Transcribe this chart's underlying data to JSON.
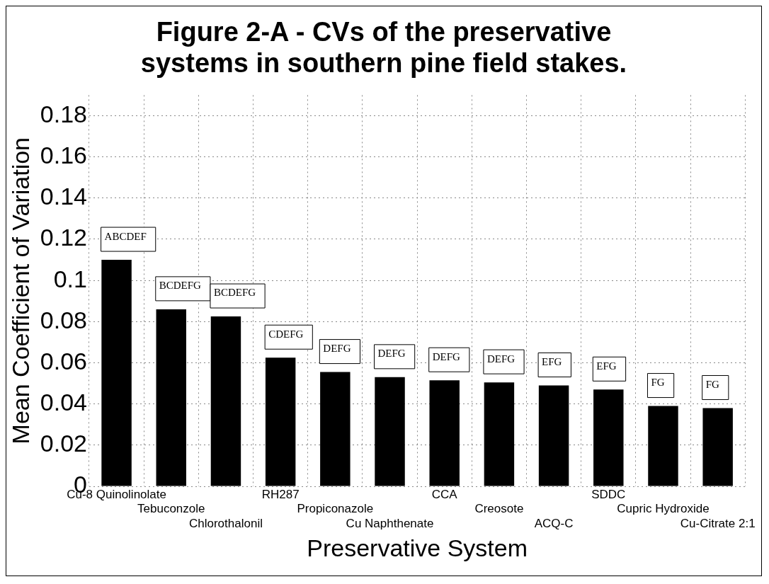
{
  "chart_data": {
    "type": "bar",
    "title": "Figure 2-A - CVs of the preservative systems in southern pine field stakes.",
    "xlabel": "Preservative System",
    "ylabel": "Mean Coefficient of Variation",
    "categories": [
      "Cu-8 Quinolinolate",
      "Tebuconzole",
      "Chlorothalonil",
      "RH287",
      "Propiconazole",
      "Cu Naphthenate",
      "CCA",
      "Creosote",
      "ACQ-C",
      "SDDC",
      "Cupric Hydroxide",
      "Cu-Citrate 2:1"
    ],
    "values": [
      0.11,
      0.086,
      0.0825,
      0.0625,
      0.0555,
      0.053,
      0.0515,
      0.0505,
      0.049,
      0.047,
      0.039,
      0.038
    ],
    "color": "#000000",
    "ylim": [
      0,
      0.19
    ],
    "yticks": [
      {
        "value": 0,
        "label": "0"
      },
      {
        "value": 0.02,
        "label": "0.02"
      },
      {
        "value": 0.04,
        "label": "0.04"
      },
      {
        "value": 0.06,
        "label": "0.06"
      },
      {
        "value": 0.08,
        "label": "0.08"
      },
      {
        "value": 0.1,
        "label": "0.1"
      },
      {
        "value": 0.12,
        "label": "0.12"
      },
      {
        "value": 0.14,
        "label": "0.14"
      },
      {
        "value": 0.16,
        "label": "0.16"
      },
      {
        "value": 0.18,
        "label": "0.18"
      }
    ],
    "grid": true,
    "line_style": "dotted",
    "annotations": [
      "ABCDEF",
      "BCDEFG",
      "BCDEFG",
      "CDEFG",
      "DEFG",
      "DEFG",
      "DEFG",
      "DEFG",
      "EFG",
      "EFG",
      "FG",
      "FG"
    ]
  }
}
